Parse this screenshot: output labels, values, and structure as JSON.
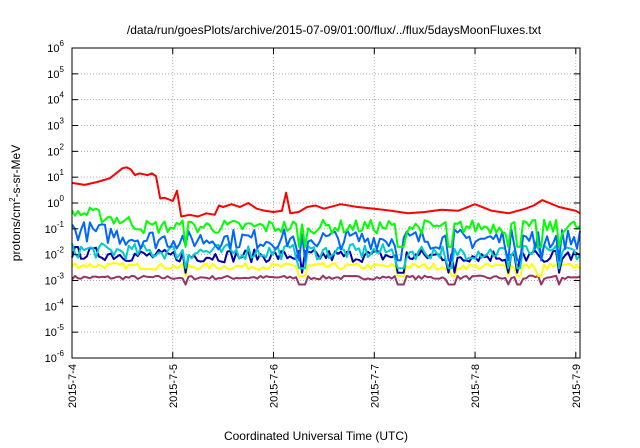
{
  "chart_data": {
    "type": "line",
    "title": "/data/run/goesPlots/archive/2015-07-09/01:00/flux/../flux/5daysMoonFluxes.txt",
    "xlabel": "Coordinated Universal Time (UTC)",
    "ylabel": {
      "prefix": "protons/cm",
      "exponent": "2",
      "suffix": "-s-sr-MeV"
    },
    "y_scale": "log",
    "ylim": [
      1e-06,
      1000000.0
    ],
    "y_ticks": [
      {
        "value": 1e-06,
        "base": "10",
        "exp": "-6"
      },
      {
        "value": 1e-05,
        "base": "10",
        "exp": "-5"
      },
      {
        "value": 0.0001,
        "base": "10",
        "exp": "-4"
      },
      {
        "value": 0.001,
        "base": "10",
        "exp": "-3"
      },
      {
        "value": 0.01,
        "base": "10",
        "exp": "-2"
      },
      {
        "value": 0.1,
        "base": "10",
        "exp": "-1"
      },
      {
        "value": 1.0,
        "base": "10",
        "exp": "0"
      },
      {
        "value": 10.0,
        "base": "10",
        "exp": "1"
      },
      {
        "value": 100.0,
        "base": "10",
        "exp": "2"
      },
      {
        "value": 1000.0,
        "base": "10",
        "exp": "3"
      },
      {
        "value": 10000.0,
        "base": "10",
        "exp": "4"
      },
      {
        "value": 100000.0,
        "base": "10",
        "exp": "5"
      },
      {
        "value": 1000000.0,
        "base": "10",
        "exp": "6"
      }
    ],
    "xlim": [
      "2015-07-04T00:00",
      "2015-07-09T01:00"
    ],
    "x_ticks": [
      {
        "date": "2015-07-04",
        "label": "2015-7-4"
      },
      {
        "date": "2015-07-05",
        "label": "2015-7-5"
      },
      {
        "date": "2015-07-06",
        "label": "2015-7-6"
      },
      {
        "date": "2015-07-07",
        "label": "2015-7-7"
      },
      {
        "date": "2015-07-08",
        "label": "2015-7-8"
      },
      {
        "date": "2015-07-09",
        "label": "2015-7-9"
      }
    ],
    "grid": true,
    "series": [
      {
        "color": "#ff0000",
        "x": [
          "2015-07-04T00:00",
          "2015-07-04T03:00",
          "2015-07-04T06:00",
          "2015-07-04T09:00",
          "2015-07-04T12:00",
          "2015-07-04T13:00",
          "2015-07-04T14:00",
          "2015-07-04T15:00",
          "2015-07-04T16:00",
          "2015-07-04T17:00",
          "2015-07-04T18:00",
          "2015-07-04T19:00",
          "2015-07-04T20:00",
          "2015-07-04T21:00",
          "2015-07-04T22:00",
          "2015-07-05T00:00",
          "2015-07-05T01:00",
          "2015-07-05T02:00",
          "2015-07-05T04:00",
          "2015-07-05T06:00",
          "2015-07-05T08:00",
          "2015-07-05T10:00",
          "2015-07-05T11:00",
          "2015-07-05T12:00",
          "2015-07-05T14:00",
          "2015-07-05T16:00",
          "2015-07-05T18:00",
          "2015-07-05T20:00",
          "2015-07-05T22:00",
          "2015-07-06T00:00",
          "2015-07-06T02:00",
          "2015-07-06T03:00",
          "2015-07-06T04:00",
          "2015-07-06T06:00",
          "2015-07-06T08:00",
          "2015-07-06T10:00",
          "2015-07-06T12:00",
          "2015-07-06T16:00",
          "2015-07-06T20:00",
          "2015-07-07T00:00",
          "2015-07-07T04:00",
          "2015-07-07T08:00",
          "2015-07-07T12:00",
          "2015-07-07T16:00",
          "2015-07-07T20:00",
          "2015-07-08T00:00",
          "2015-07-08T04:00",
          "2015-07-08T08:00",
          "2015-07-08T12:00",
          "2015-07-08T14:00",
          "2015-07-08T16:00",
          "2015-07-08T20:00",
          "2015-07-09T00:00",
          "2015-07-09T01:00"
        ],
        "y": [
          6.0,
          5.0,
          6.5,
          9.0,
          22,
          24,
          20,
          12,
          14,
          13,
          12,
          14,
          11,
          1.5,
          1.6,
          1.2,
          3.0,
          0.3,
          0.35,
          0.3,
          0.4,
          0.35,
          0.8,
          0.7,
          0.9,
          0.7,
          1.0,
          0.6,
          0.5,
          0.45,
          0.5,
          2.5,
          0.4,
          0.45,
          0.7,
          0.8,
          0.6,
          0.9,
          0.7,
          0.6,
          0.5,
          0.4,
          0.45,
          0.55,
          0.5,
          0.9,
          0.5,
          0.4,
          0.6,
          0.8,
          1.3,
          0.7,
          0.5,
          0.4
        ]
      },
      {
        "color": "#00ff00",
        "base": 0.12,
        "start": 0.45,
        "amp": 0.55,
        "dip": 0.02
      },
      {
        "color": "#0066ff",
        "base": 0.04,
        "start": 0.09,
        "amp": 0.8,
        "dip": 0.006
      },
      {
        "color": "#00cccc",
        "base": 0.013,
        "start": 0.015,
        "amp": 0.6,
        "dip": 0.003
      },
      {
        "color": "#0000aa",
        "base": 0.009,
        "start": 0.012,
        "amp": 0.5,
        "dip": 0.002
      },
      {
        "color": "#ffff00",
        "base": 0.0035,
        "start": 0.004,
        "amp": 0.25,
        "dip": 0.0015
      },
      {
        "color": "#993366",
        "base": 0.0013,
        "start": 0.0013,
        "amp": 0.15,
        "dip": 0.0007
      }
    ]
  }
}
